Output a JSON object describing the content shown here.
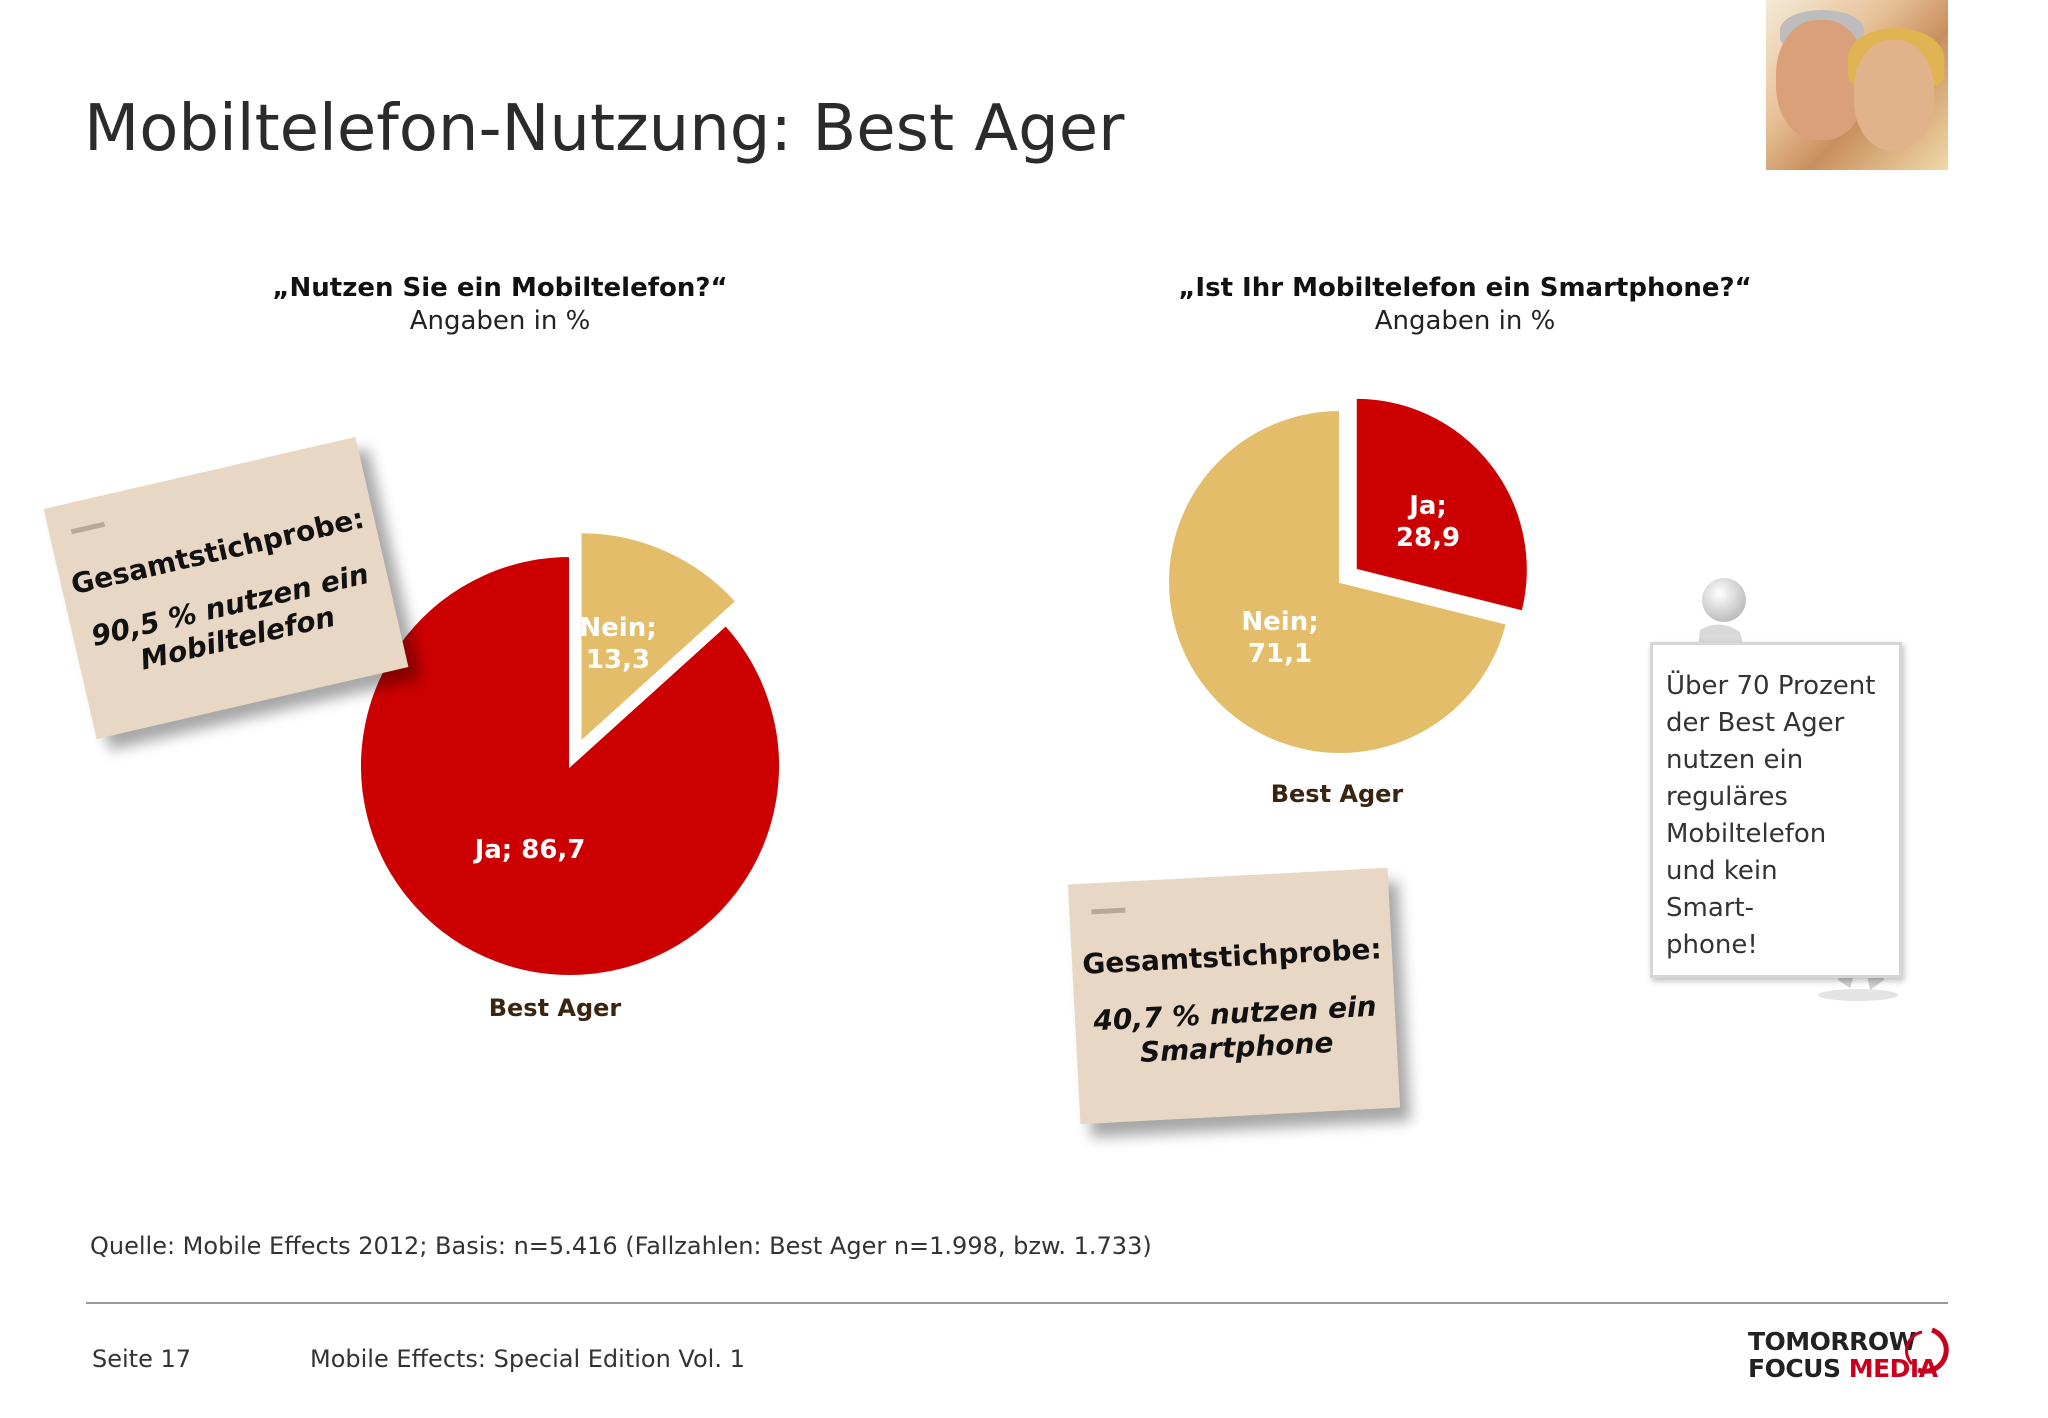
{
  "page": {
    "title": "Mobiltelefon-Nutzung: Best Ager",
    "source": "Quelle: Mobile Effects 2012; Basis: n=5.416 (Fallzahlen: Best Ager n=1.998, bzw. 1.733)",
    "page_number": "Seite 17",
    "edition": "Mobile Effects: Special Edition Vol. 1",
    "logo": {
      "line1": "TOMORROW",
      "line2a": "FOCUS",
      "line2b": "MEDIA"
    },
    "photo_icon": "couple-photo"
  },
  "colors": {
    "ja": "#cc0000",
    "nein": "#e3bd6a",
    "note_bg": "#e8d7c4"
  },
  "chart_data": [
    {
      "type": "pie",
      "question": "„Nutzen Sie ein Mobiltelefon?“",
      "subtitle": "Angaben in %",
      "category": "Best Ager",
      "slices": [
        {
          "label": "Nein; 13,3",
          "name": "Nein",
          "value": 13.3,
          "exploded": true
        },
        {
          "label": "Ja; 86,7",
          "name": "Ja",
          "value": 86.7,
          "exploded": false
        }
      ]
    },
    {
      "type": "pie",
      "question": "„Ist Ihr Mobiltelefon ein Smartphone?“",
      "subtitle": "Angaben in %",
      "category": "Best Ager",
      "slices": [
        {
          "label": "Ja; 28,9",
          "name": "Ja",
          "value": 28.9,
          "exploded": true
        },
        {
          "label": "Nein; 71,1",
          "name": "Nein",
          "value": 71.1,
          "exploded": false
        }
      ]
    }
  ],
  "notes": {
    "left": {
      "head": "Gesamtstichprobe:",
      "line1": "90,5 % nutzen ein",
      "line2": "Mobiltelefon"
    },
    "right": {
      "head": "Gesamtstichprobe:",
      "line1": "40,7 % nutzen ein",
      "line2": "Smartphone"
    }
  },
  "board": {
    "lines": [
      "Über 70 Prozent",
      "der Best Ager",
      "nutzen ein",
      "reguläres",
      "Mobiltelefon",
      "und kein",
      "Smart-",
      "phone!"
    ]
  }
}
